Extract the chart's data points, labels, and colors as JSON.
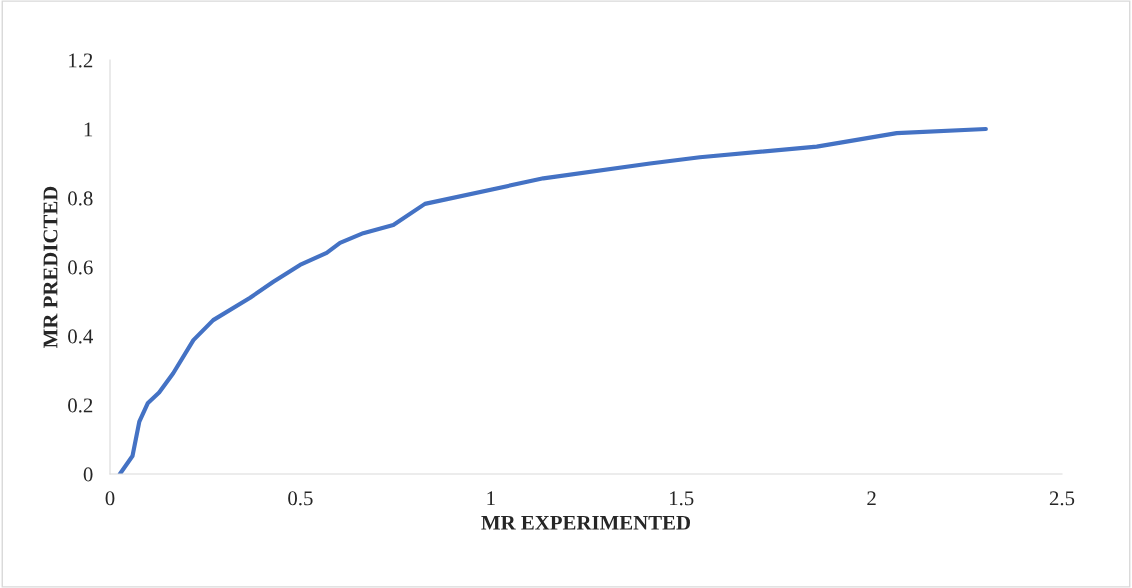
{
  "chart_data": {
    "type": "line",
    "xlabel": "MR EXPERIMENTED",
    "ylabel": "MR PREDICTED",
    "grid": false,
    "marker": "none",
    "line_style": "solid",
    "xlim": [
      0,
      2.5
    ],
    "xticks": [
      0,
      0.5,
      1,
      1.5,
      2,
      2.5
    ],
    "ylim": [
      0,
      1.2
    ],
    "yticks": [
      0,
      0.2,
      0.4,
      0.6,
      0.8,
      1,
      1.2
    ],
    "series": [
      {
        "color": "#4472c4",
        "x": [
          0.026,
          0.059,
          0.077,
          0.099,
          0.129,
          0.166,
          0.219,
          0.271,
          0.368,
          0.429,
          0.499,
          0.569,
          0.604,
          0.665,
          0.744,
          0.827,
          1.138,
          1.418,
          1.549,
          1.856,
          2.066,
          2.3
        ],
        "values": [
          0.0,
          0.052,
          0.152,
          0.205,
          0.236,
          0.292,
          0.388,
          0.446,
          0.511,
          0.557,
          0.606,
          0.641,
          0.67,
          0.698,
          0.722,
          0.783,
          0.857,
          0.9,
          0.918,
          0.949,
          0.988,
          1.0
        ]
      }
    ]
  }
}
